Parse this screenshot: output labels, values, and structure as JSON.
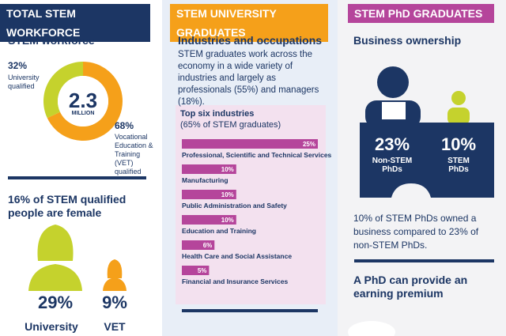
{
  "columns": [
    {
      "header": "TOTAL STEM WORKFORCE",
      "heading": "STEM workforce",
      "donut": {
        "type": "pie",
        "values": [
          32,
          68
        ],
        "value_labels": [
          "32%",
          "68%"
        ],
        "labels": [
          "University qualified",
          "Vocational Education & Training (VET) qualified"
        ],
        "colors": [
          "#c5d22d",
          "#f5a01a"
        ],
        "center_value": "2.3",
        "center_unit": "MILLION"
      },
      "female_heading": "16% of STEM qualified people are female",
      "female": [
        {
          "value": "29%",
          "label": "University"
        },
        {
          "value": "9%",
          "label": "VET"
        }
      ]
    },
    {
      "header": "STEM UNIVERSITY GRADUATES",
      "heading": "Industries and occupations",
      "text": "STEM graduates work across the economy in a wide variety of industries and largely as professionals (55%) and managers (18%).",
      "industries": {
        "type": "bar",
        "title": "Top six industries",
        "subtitle": "(65% of STEM graduates)",
        "categories": [
          "Professional, Scientific and Technical Services",
          "Manufacturing",
          "Public Administration and Safety",
          "Education and Training",
          "Health Care and Social Assistance",
          "Financial and Insurance Services"
        ],
        "values": [
          25,
          10,
          10,
          10,
          6,
          5
        ],
        "value_labels": [
          "25%",
          "10%",
          "10%",
          "10%",
          "6%",
          "5%"
        ],
        "color": "#b5459b"
      }
    },
    {
      "header": "STEM PhD GRADUATES",
      "heading": "Business ownership",
      "stats": [
        {
          "value": "23%",
          "label": "Non-STEM PhDs"
        },
        {
          "value": "10%",
          "label": "STEM PhDs"
        }
      ],
      "text": "10% of STEM PhDs owned a business compared to 23% of non-STEM PhDs.",
      "heading2": "A PhD can provide an earning premium"
    }
  ]
}
